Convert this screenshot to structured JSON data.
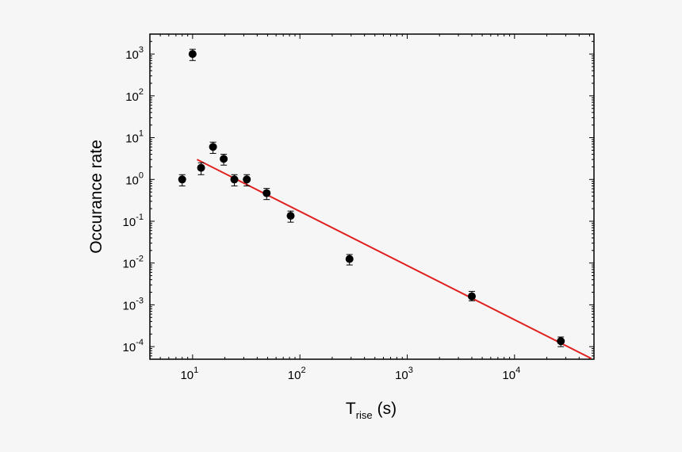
{
  "chart_data": {
    "type": "scatter",
    "xlabel": "T",
    "xlabel_subscript": "rise",
    "xlabel_unit": "(s)",
    "ylabel": "Occurance rate",
    "xscale": "log",
    "yscale": "log",
    "xlim": [
      4,
      55000
    ],
    "ylim": [
      5e-05,
      3000
    ],
    "x_ticks": [
      {
        "base": "10",
        "exp": "1",
        "value": 10
      },
      {
        "base": "10",
        "exp": "2",
        "value": 100
      },
      {
        "base": "10",
        "exp": "3",
        "value": 1000
      },
      {
        "base": "10",
        "exp": "4",
        "value": 10000
      }
    ],
    "y_ticks": [
      {
        "base": "10",
        "exp": "3",
        "value": 1000
      },
      {
        "base": "10",
        "exp": "2",
        "value": 100
      },
      {
        "base": "10",
        "exp": "1",
        "value": 10
      },
      {
        "base": "10",
        "exp": "0",
        "value": 1
      },
      {
        "base": "10",
        "exp": "-1",
        "value": 0.1
      },
      {
        "base": "10",
        "exp": "-2",
        "value": 0.01
      },
      {
        "base": "10",
        "exp": "-3",
        "value": 0.001
      },
      {
        "base": "10",
        "exp": "-4",
        "value": 0.0001
      }
    ],
    "points": [
      {
        "x": 8,
        "y": 1.0,
        "ylo": 0.7,
        "yhi": 1.3
      },
      {
        "x": 10,
        "y": 1000,
        "ylo": 700,
        "yhi": 1300
      },
      {
        "x": 12,
        "y": 1.9,
        "ylo": 1.3,
        "yhi": 2.5
      },
      {
        "x": 15.5,
        "y": 6.0,
        "ylo": 4.2,
        "yhi": 7.8
      },
      {
        "x": 19.5,
        "y": 3.1,
        "ylo": 2.2,
        "yhi": 4.0
      },
      {
        "x": 24.5,
        "y": 1.0,
        "ylo": 0.7,
        "yhi": 1.3
      },
      {
        "x": 32,
        "y": 1.0,
        "ylo": 0.7,
        "yhi": 1.3
      },
      {
        "x": 49,
        "y": 0.47,
        "ylo": 0.33,
        "yhi": 0.61
      },
      {
        "x": 82,
        "y": 0.135,
        "ylo": 0.095,
        "yhi": 0.175
      },
      {
        "x": 290,
        "y": 0.0125,
        "ylo": 0.009,
        "yhi": 0.016
      },
      {
        "x": 4000,
        "y": 0.0016,
        "ylo": 0.00125,
        "yhi": 0.0021
      },
      {
        "x": 27000,
        "y": 0.000135,
        "ylo": 0.0001,
        "yhi": 0.00017
      }
    ],
    "fit_line": {
      "color": "#e0201e",
      "x": [
        11,
        52000
      ],
      "y": [
        3.0,
        5.2e-05
      ]
    },
    "marker_color": "#000000",
    "grid": false,
    "legend": "none"
  }
}
